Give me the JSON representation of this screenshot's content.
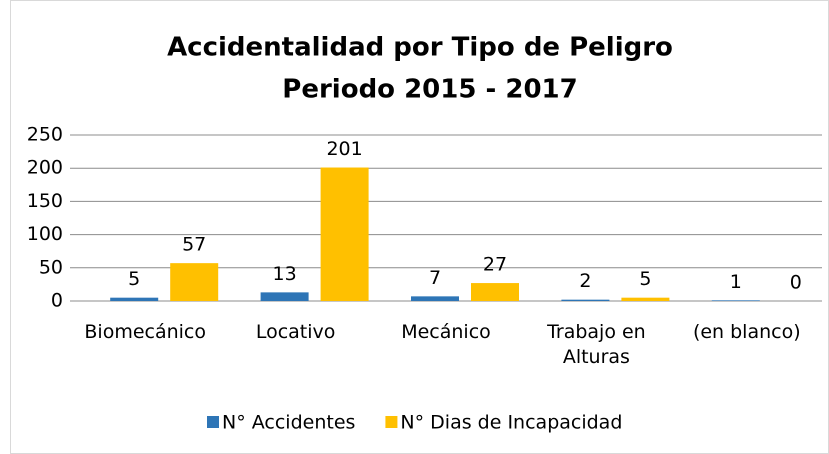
{
  "chart_data": {
    "type": "bar",
    "title": [
      "Accidentalidad por Tipo de Peligro",
      "Periodo 2015 - 2017"
    ],
    "categories": [
      "Biomecánico",
      "Locativo",
      "Mecánico",
      "Trabajo en Alturas",
      "(en blanco)"
    ],
    "series": [
      {
        "name": "N° Accidentes",
        "color": "#2e75b6",
        "values": [
          5,
          13,
          7,
          2,
          1
        ]
      },
      {
        "name": "N° Dias de Incapacidad",
        "color": "#ffc000",
        "values": [
          57,
          201,
          27,
          5,
          0
        ]
      }
    ],
    "ylim": [
      0,
      250
    ],
    "yticks": [
      0,
      50,
      100,
      150,
      200,
      250
    ],
    "grid": true,
    "legend": "bottom"
  }
}
